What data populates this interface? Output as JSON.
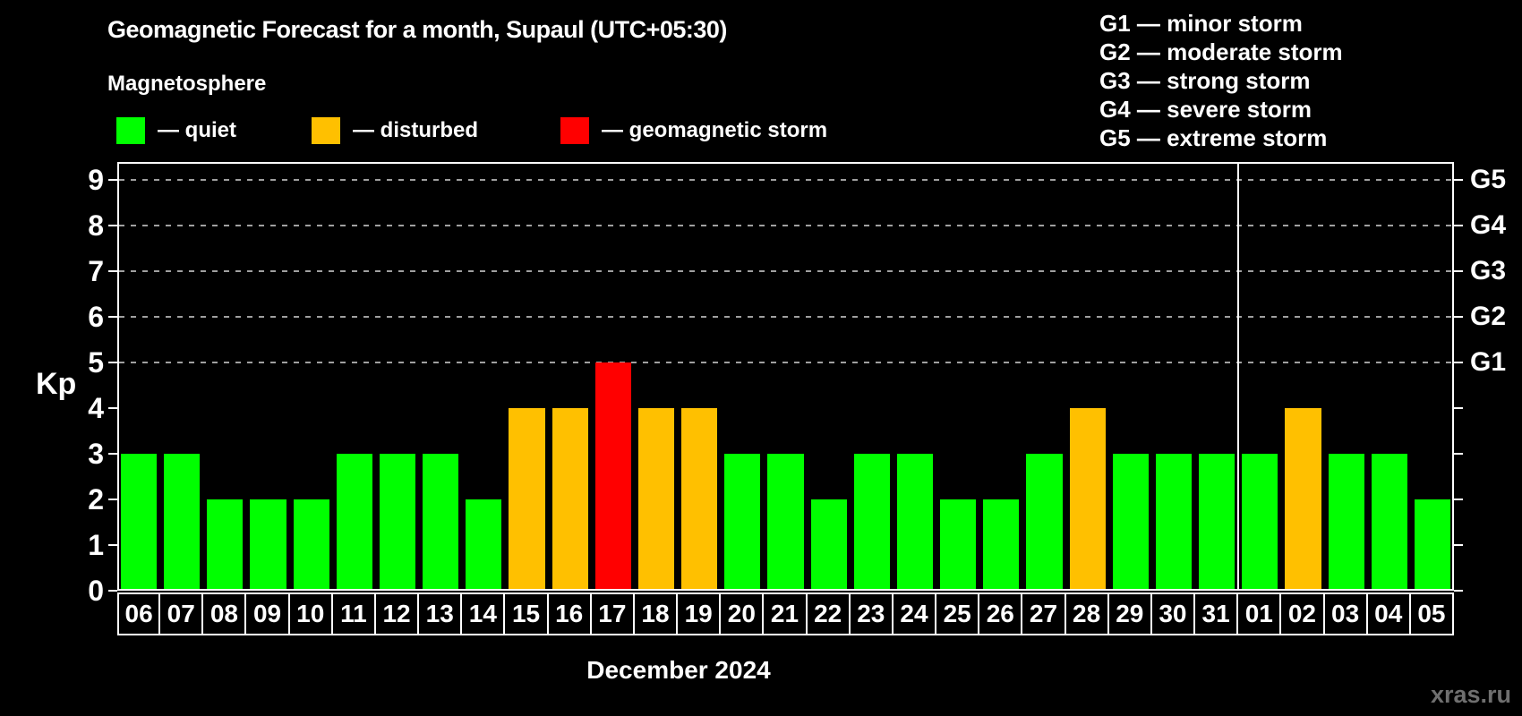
{
  "header": {
    "title": "Geomagnetic Forecast for a month, Supaul (UTC+05:30)",
    "subtitle": "Magnetosphere"
  },
  "legend": {
    "items": [
      {
        "key": "quiet",
        "label": "— quiet"
      },
      {
        "key": "disturbed",
        "label": "— disturbed"
      },
      {
        "key": "storm",
        "label": "— geomagnetic storm"
      }
    ]
  },
  "g_legend": {
    "lines": [
      "G1 — minor storm",
      "G2 — moderate storm",
      "G3 — strong storm",
      "G4 — severe storm",
      "G5 — extreme storm"
    ]
  },
  "colors": {
    "quiet": "#00ff00",
    "disturbed": "#ffc000",
    "storm": "#ff0000",
    "background": "#000000",
    "axis": "#ffffff",
    "grid": "#a0a0a0",
    "watermark": "#6f6f6f"
  },
  "chart_data": {
    "type": "bar",
    "title": "Geomagnetic Forecast for a month, Supaul (UTC+05:30)",
    "subtitle": "Magnetosphere",
    "ylabel": "Kp",
    "xlabel": "December 2024",
    "ylim": [
      0,
      9.4
    ],
    "yticks": [
      0,
      1,
      2,
      3,
      4,
      5,
      6,
      7,
      8,
      9
    ],
    "gridlines_at": [
      5,
      6,
      7,
      8,
      9
    ],
    "grid_style": "dashed horizontal lines at storm levels only",
    "legend_position": "top-left",
    "right_axis_labels": [
      {
        "kp": 5,
        "label": "G1"
      },
      {
        "kp": 6,
        "label": "G2"
      },
      {
        "kp": 7,
        "label": "G3"
      },
      {
        "kp": 8,
        "label": "G4"
      },
      {
        "kp": 9,
        "label": "G5"
      }
    ],
    "month_separator_before_category": "01",
    "categories": [
      "06",
      "07",
      "08",
      "09",
      "10",
      "11",
      "12",
      "13",
      "14",
      "15",
      "16",
      "17",
      "18",
      "19",
      "20",
      "21",
      "22",
      "23",
      "24",
      "25",
      "26",
      "27",
      "28",
      "29",
      "30",
      "31",
      "01",
      "02",
      "03",
      "04",
      "05"
    ],
    "values": [
      3,
      3,
      2,
      2,
      2,
      3,
      3,
      3,
      2,
      4,
      4,
      5,
      4,
      4,
      3,
      3,
      2,
      3,
      3,
      2,
      2,
      3,
      4,
      3,
      3,
      3,
      3,
      4,
      3,
      3,
      2
    ],
    "statuses": [
      "quiet",
      "quiet",
      "quiet",
      "quiet",
      "quiet",
      "quiet",
      "quiet",
      "quiet",
      "quiet",
      "disturbed",
      "disturbed",
      "storm",
      "disturbed",
      "disturbed",
      "quiet",
      "quiet",
      "quiet",
      "quiet",
      "quiet",
      "quiet",
      "quiet",
      "quiet",
      "disturbed",
      "quiet",
      "quiet",
      "quiet",
      "quiet",
      "disturbed",
      "quiet",
      "quiet",
      "quiet"
    ]
  },
  "footer": {
    "month_label": "December 2024",
    "watermark": "xras.ru"
  },
  "axis": {
    "kp_label": "Kp"
  }
}
